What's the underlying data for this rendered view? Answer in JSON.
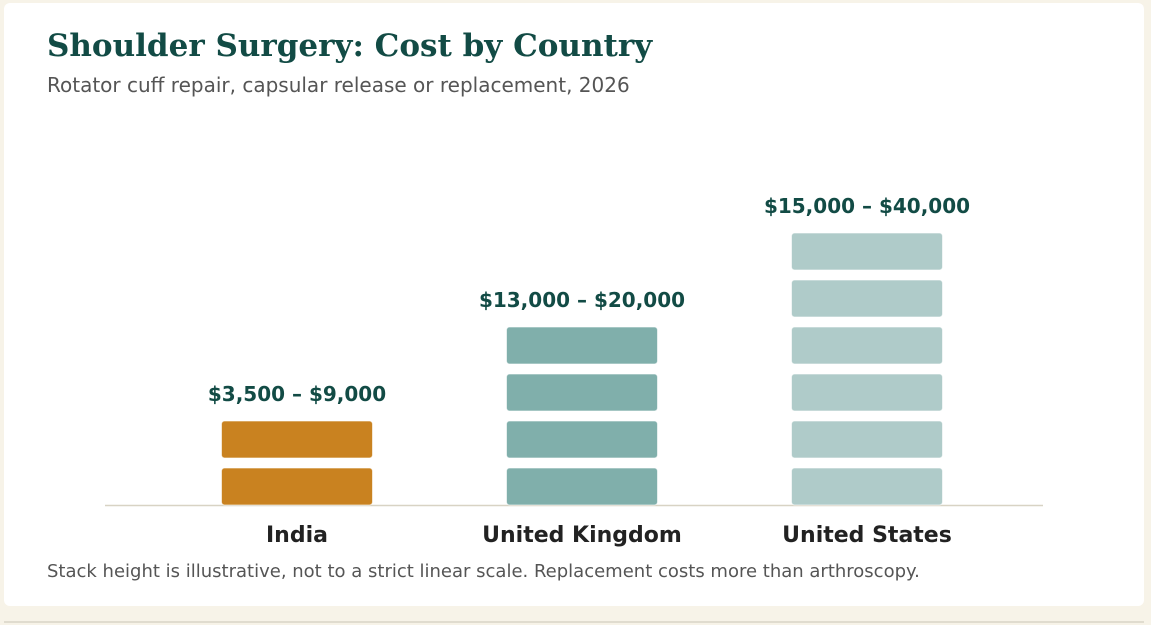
{
  "header": {
    "title": "Shoulder Surgery: Cost by Country",
    "subtitle": "Rotator cuff repair, capsular release or replacement, 2026"
  },
  "footer": {
    "note": "Stack height is illustrative, not to a strict linear scale. Replacement costs more than arthroscopy."
  },
  "chart_data": {
    "type": "bar",
    "title": "Shoulder Surgery: Cost by Country",
    "subtitle": "Rotator cuff repair, capsular release or replacement, 2026",
    "xlabel": "",
    "ylabel": "",
    "grid": false,
    "legend": "none",
    "categories": [
      "India",
      "United Kingdom",
      "United States"
    ],
    "series": [
      {
        "values": [
          2,
          4,
          6
        ],
        "range_labels": [
          "$3,500 – $9,000",
          "$13,000 – $20,000",
          "$15,000 – $40,000"
        ],
        "ranges_usd": [
          [
            3500,
            9000
          ],
          [
            13000,
            20000
          ],
          [
            15000,
            40000
          ]
        ],
        "colors": [
          "#c98220",
          "#80afab",
          "#afcbc9"
        ]
      }
    ]
  }
}
